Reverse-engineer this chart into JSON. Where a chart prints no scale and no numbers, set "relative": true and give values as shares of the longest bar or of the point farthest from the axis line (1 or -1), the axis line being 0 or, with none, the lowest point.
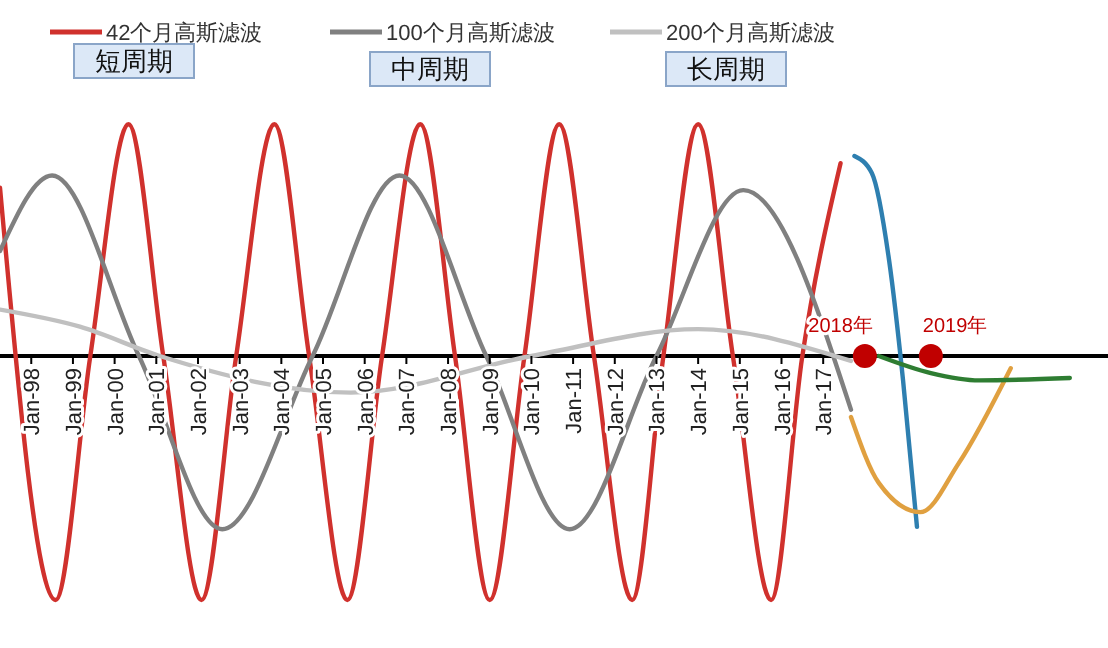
{
  "chart_data": {
    "type": "line",
    "relative": true,
    "legend": "top",
    "grid": false,
    "xlim": [
      "1997-04",
      "2023-11"
    ],
    "xticks": [
      {
        "value": "1998-01",
        "label": "Jan-98"
      },
      {
        "value": "1999-01",
        "label": "Jan-99"
      },
      {
        "value": "2000-01",
        "label": "Jan-00"
      },
      {
        "value": "2001-01",
        "label": "Jan-01"
      },
      {
        "value": "2002-01",
        "label": "Jan-02"
      },
      {
        "value": "2003-01",
        "label": "Jan-03"
      },
      {
        "value": "2004-01",
        "label": "Jan-04"
      },
      {
        "value": "2005-01",
        "label": "Jan-05"
      },
      {
        "value": "2006-01",
        "label": "Jan-06"
      },
      {
        "value": "2007-01",
        "label": "Jan-07"
      },
      {
        "value": "2008-01",
        "label": "Jan-08"
      },
      {
        "value": "2009-01",
        "label": "Jan-09"
      },
      {
        "value": "2010-01",
        "label": "Jan-10"
      },
      {
        "value": "2011-01",
        "label": "Jan-11"
      },
      {
        "value": "2012-01",
        "label": "Jan-12"
      },
      {
        "value": "2013-01",
        "label": "Jan-13"
      },
      {
        "value": "2014-01",
        "label": "Jan-14"
      },
      {
        "value": "2015-01",
        "label": "Jan-15"
      },
      {
        "value": "2016-01",
        "label": "Jan-16"
      },
      {
        "value": "2017-01",
        "label": "Jan-17"
      }
    ],
    "series": [
      {
        "name": "42个月高斯滤波",
        "color": "#d0312d",
        "x": [
          "1997-04",
          "1998-08",
          "1999-06",
          "2000-05",
          "2001-03",
          "2002-02",
          "2002-12",
          "2003-11",
          "2004-09",
          "2005-08",
          "2006-06",
          "2007-05",
          "2008-03",
          "2009-01",
          "2009-11",
          "2010-09",
          "2011-07",
          "2012-06",
          "2013-03",
          "2014-01",
          "2014-11",
          "2015-10",
          "2016-07",
          "2017-06"
        ],
        "values": [
          0.69,
          -1,
          0,
          0.95,
          0,
          -1,
          0,
          0.95,
          0,
          -1,
          0,
          0.95,
          0,
          -1,
          0,
          0.95,
          0,
          -1,
          0,
          0.95,
          0,
          -1,
          0,
          0.79
        ]
      },
      {
        "name": "100个月高斯滤波",
        "color": "#808080",
        "x": [
          "1997-04",
          "1998-07",
          "2000-08",
          "2002-08",
          "2004-10",
          "2006-11",
          "2008-12",
          "2010-12",
          "2013-01",
          "2015-02",
          "2017-09"
        ],
        "values": [
          0.43,
          0.74,
          0,
          -0.71,
          0,
          0.74,
          0,
          -0.71,
          0,
          0.68,
          -0.22
        ]
      },
      {
        "name": "200个月高斯滤波",
        "color": "#c0c0c0",
        "x": [
          "1997-04",
          "1999-03",
          "2001-02",
          "2005-09",
          "2010-01",
          "2014-01",
          "2017-09"
        ],
        "values": [
          0.19,
          0.12,
          0,
          -0.15,
          0,
          0.11,
          -0.02
        ]
      },
      {
        "color": "#2e7fb0",
        "x": [
          "2017-10",
          "2018-03",
          "2018-08",
          "2018-12",
          "2019-04"
        ],
        "values": [
          0.82,
          0.75,
          0.39,
          -0.1,
          -0.7
        ]
      },
      {
        "color": "#e0a040",
        "x": [
          "2017-09",
          "2018-05",
          "2019-05",
          "2020-04",
          "2021-07"
        ],
        "values": [
          -0.25,
          -0.52,
          -0.64,
          -0.44,
          -0.05
        ]
      },
      {
        "color": "#2e7d32",
        "x": [
          "2018-05",
          "2019-08",
          "2020-10",
          "2022-12"
        ],
        "values": [
          0,
          -0.07,
          -0.1,
          -0.09
        ]
      },
      {
        "type": "scatter",
        "color": "#c00000",
        "x": [
          "2018-01",
          "2019-08"
        ],
        "values": [
          0,
          0
        ]
      }
    ],
    "annotations": [
      "短周期",
      "中周期",
      "长周期",
      {
        "text": "2018年",
        "x": "2018-01",
        "y": 0
      },
      {
        "text": "2019年",
        "x": "2019-08",
        "y": 0
      }
    ]
  }
}
